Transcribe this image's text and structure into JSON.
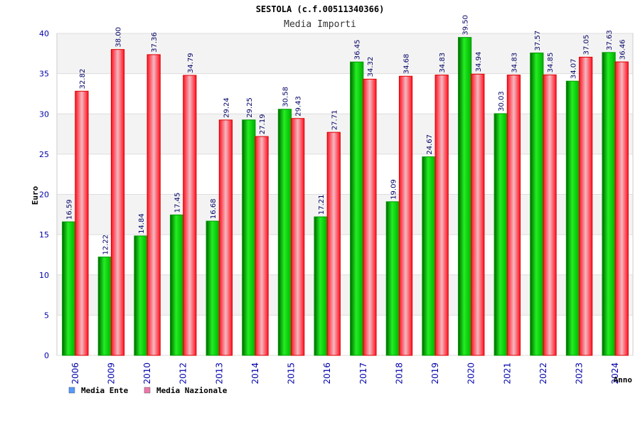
{
  "chart_data": {
    "type": "bar",
    "title": "SESTOLA (c.f.00511340366)",
    "subtitle": "Media Importi",
    "xlabel": "Anno",
    "ylabel": "Euro",
    "ylim": [
      0,
      40
    ],
    "yticks": [
      "0",
      "5",
      "10",
      "15",
      "20",
      "25",
      "30",
      "35",
      "40"
    ],
    "categories": [
      "2006",
      "2009",
      "2010",
      "2012",
      "2013",
      "2014",
      "2015",
      "2016",
      "2017",
      "2018",
      "2019",
      "2020",
      "2021",
      "2022",
      "2023",
      "2024"
    ],
    "series": [
      {
        "name": "Media Ente",
        "color": "#00cc00",
        "values": [
          16.59,
          12.22,
          14.84,
          17.45,
          16.68,
          29.25,
          30.58,
          17.21,
          36.45,
          19.09,
          24.67,
          39.5,
          30.03,
          37.57,
          34.07,
          37.63
        ],
        "labels": [
          "16.59",
          "12.22",
          "14.84",
          "17.45",
          "16.68",
          "29.25",
          "30.58",
          "17.21",
          "36.45",
          "19.09",
          "24.67",
          "39.50",
          "30.03",
          "37.57",
          "34.07",
          "37.63"
        ]
      },
      {
        "name": "Media Nazionale",
        "color": "#ff1a2e",
        "values": [
          32.82,
          38.0,
          37.36,
          34.79,
          29.24,
          27.19,
          29.43,
          27.71,
          34.32,
          34.68,
          34.83,
          34.94,
          34.83,
          34.85,
          37.05,
          36.46
        ],
        "labels": [
          "32.82",
          "38.00",
          "37.36",
          "34.79",
          "29.24",
          "27.19",
          "29.43",
          "27.71",
          "34.32",
          "34.68",
          "34.83",
          "34.94",
          "34.83",
          "34.85",
          "37.05",
          "36.46"
        ]
      }
    ],
    "legend": [
      {
        "label": "Media Ente",
        "swatch": "#5599ff"
      },
      {
        "label": "Media Nazionale",
        "swatch": "#ee77aa"
      }
    ],
    "legend_position": "bottom-left",
    "grid": true
  }
}
